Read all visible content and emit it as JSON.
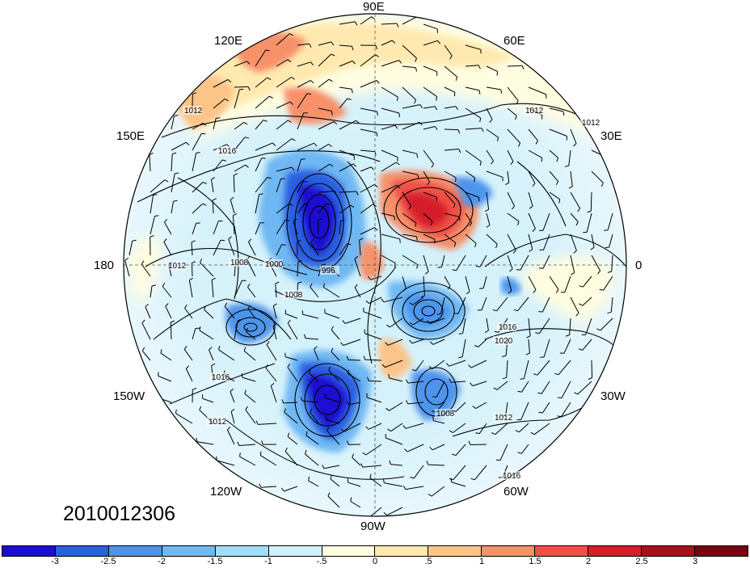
{
  "map": {
    "projection": "polar-stereographic-north",
    "timestamp": "2010012306",
    "longitude_labels": {
      "lon_90e": "90E",
      "lon_60e": "60E",
      "lon_30e": "30E",
      "lon_0": "0",
      "lon_30w": "30W",
      "lon_60w": "60W",
      "lon_90w": "90W",
      "lon_120w": "120W",
      "lon_150w": "150W",
      "lon_180": "180",
      "lon_150e": "150E",
      "lon_120e": "120E"
    },
    "contour_labels": [
      "1012",
      "1016",
      "1012",
      "1008",
      "1000",
      "996",
      "1008",
      "1012",
      "1016",
      "1012",
      "1008",
      "1016",
      "1020",
      "1012",
      "1016",
      "1012"
    ],
    "anomaly_centers": [
      {
        "kind": "negative",
        "lat_region": "Siberia/Arctic",
        "value": -3
      },
      {
        "kind": "negative",
        "lat_region": "North America",
        "value": -3
      },
      {
        "kind": "positive",
        "lat_region": "Arctic/Europe",
        "value": 2.5
      },
      {
        "kind": "positive",
        "lat_region": "East Asia",
        "value": 1.5
      }
    ]
  },
  "colorbar": {
    "colors": [
      "#1a0fd0",
      "#2a5fe0",
      "#4d94ec",
      "#6fb8f3",
      "#a0def8",
      "#d0f1fb",
      "#fffde0",
      "#ffe9b0",
      "#fcc488",
      "#f6916a",
      "#ee5146",
      "#d41f2a",
      "#a80f1a",
      "#7a0010"
    ],
    "ticks": [
      "-3",
      "-2.5",
      "-2",
      "-1.5",
      "-1",
      "-.5",
      "0",
      ".5",
      "1",
      "1.5",
      "2",
      "2.5",
      "3"
    ]
  }
}
